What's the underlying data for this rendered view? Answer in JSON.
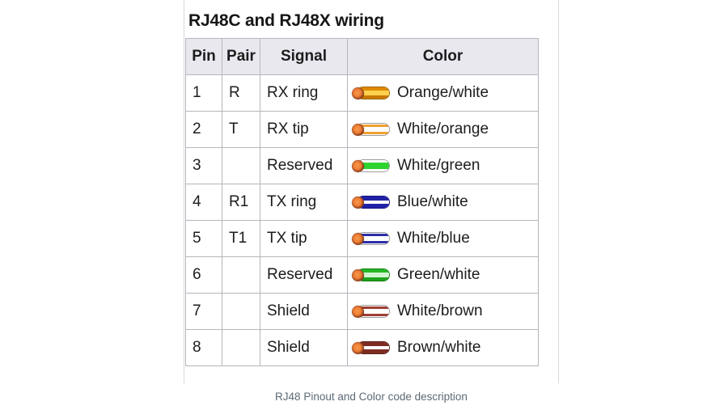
{
  "figure": {
    "title": "RJ48C and RJ48X wiring",
    "caption": "RJ48 Pinout and Color code description",
    "border_color": "#dadada"
  },
  "table": {
    "headers": [
      "Pin",
      "Pair",
      "Signal",
      "Color"
    ],
    "header_bg": "#e9e8ee",
    "grid_color": "#b6b6bd",
    "rows": [
      {
        "pin": "1",
        "pair": "R",
        "signal": "RX ring",
        "color": "Orange/white",
        "wire": {
          "border": "#a06800",
          "bands": [
            [
              "#df8a00",
              3
            ],
            [
              "#ffd04e",
              4
            ],
            [
              "#c87800",
              3
            ]
          ]
        }
      },
      {
        "pin": "2",
        "pair": "T",
        "signal": "RX tip",
        "color": "White/orange",
        "wire": {
          "border": "#9b9b9b",
          "bands": [
            [
              "#ffffff",
              1
            ],
            [
              "#f2a030",
              2
            ],
            [
              "#ffffff",
              4
            ],
            [
              "#f2a030",
              2
            ],
            [
              "#ffffff",
              1
            ]
          ]
        }
      },
      {
        "pin": "3",
        "pair": "",
        "signal": "Reserved",
        "color": "White/green",
        "wire": {
          "border": "#9b9b9b",
          "bands": [
            [
              "#ffffff",
              2
            ],
            [
              "#2fd32f",
              5
            ],
            [
              "#ffffff",
              2
            ]
          ]
        }
      },
      {
        "pin": "4",
        "pair": "R1",
        "signal": "TX ring",
        "color": "Blue/white",
        "wire": {
          "border": "#14148a",
          "bands": [
            [
              "#2121a5",
              3
            ],
            [
              "#ffffff",
              3
            ],
            [
              "#2121a5",
              3
            ]
          ]
        }
      },
      {
        "pin": "5",
        "pair": "T1",
        "signal": "TX tip",
        "color": "White/blue",
        "wire": {
          "border": "#9b9b9b",
          "bands": [
            [
              "#ffffff",
              1
            ],
            [
              "#2e2eaa",
              2
            ],
            [
              "#ffffff",
              4
            ],
            [
              "#2e2eaa",
              2
            ],
            [
              "#ffffff",
              1
            ]
          ]
        }
      },
      {
        "pin": "6",
        "pair": "",
        "signal": "Reserved",
        "color": "Green/white",
        "wire": {
          "border": "#117a11",
          "bands": [
            [
              "#25b825",
              3
            ],
            [
              "#d2f6d2",
              4
            ],
            [
              "#1da21d",
              3
            ]
          ]
        }
      },
      {
        "pin": "7",
        "pair": "",
        "signal": "Shield",
        "color": "White/brown",
        "wire": {
          "border": "#9b9b9b",
          "bands": [
            [
              "#ffffff",
              1
            ],
            [
              "#a03d32",
              2
            ],
            [
              "#ffffff",
              4
            ],
            [
              "#a03d32",
              2
            ],
            [
              "#ffffff",
              1
            ]
          ]
        }
      },
      {
        "pin": "8",
        "pair": "",
        "signal": "Shield",
        "color": "Brown/white",
        "wire": {
          "border": "#5c201b",
          "bands": [
            [
              "#7d2b23",
              3
            ],
            [
              "#ffffff",
              3
            ],
            [
              "#7d2b23",
              3
            ]
          ]
        }
      }
    ]
  },
  "wire_icon": {
    "copper_core": "#ef7e35",
    "copper_ring": "#7c2f14"
  }
}
